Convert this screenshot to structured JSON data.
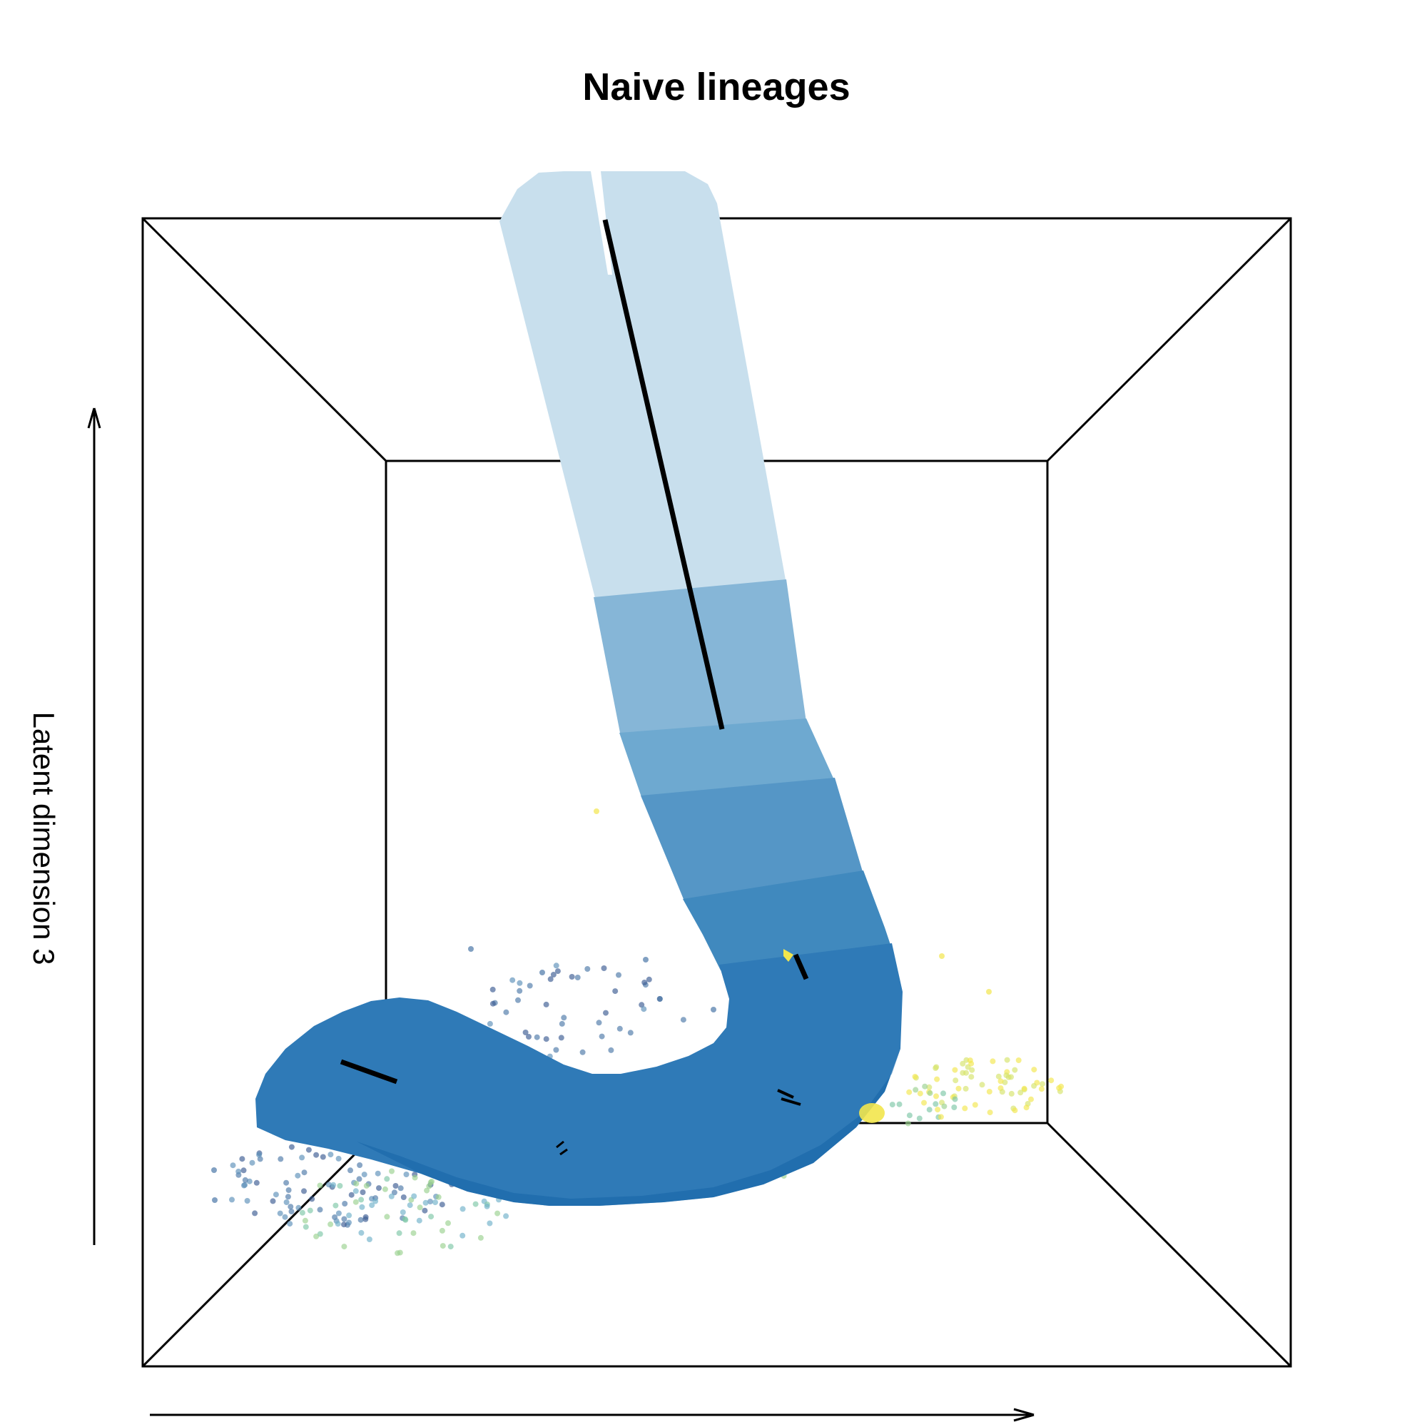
{
  "chart_data": {
    "type": "3d-trajectory-scatter",
    "title": "Naive lineages",
    "ylabel": "Latent dimension 3",
    "xlabel": "",
    "grid": false,
    "legend": "none",
    "box": "3d-perspective-box",
    "colors": {
      "tube_segments": [
        "#c8dfed",
        "#86b6d7",
        "#6ea9d0",
        "#5596c6",
        "#4089be",
        "#2f7ab7",
        "#1e6aac",
        "#1563a8"
      ],
      "point_palette": [
        "#3b5b92",
        "#4c78a8",
        "#5a8fb8",
        "#6fb0c9",
        "#7cc6a6",
        "#9ad18f",
        "#d6e36a",
        "#f2e64d"
      ],
      "segment_line": "#000000",
      "axis_line": "#000000"
    }
  }
}
